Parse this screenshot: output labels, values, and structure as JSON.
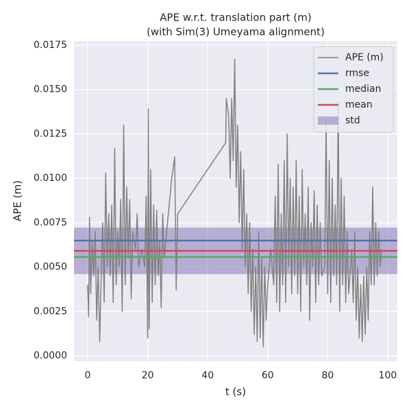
{
  "chart_data": {
    "type": "line",
    "title": "APE w.r.t. translation part (m)",
    "subtitle": "(with Sim(3) Umeyama alignment)",
    "x_label": "t (s)",
    "y_label": "APE (m)",
    "xlim": [
      -4.57,
      103.2
    ],
    "ylim": [
      -0.00031,
      0.01773
    ],
    "xticks": [
      0,
      20,
      40,
      60,
      80,
      100
    ],
    "yticks": [
      {
        "value": 0,
        "label": "0.0000"
      },
      {
        "value": 0.0025,
        "label": "0.0025"
      },
      {
        "value": 0.005,
        "label": "0.0050"
      },
      {
        "value": 0.0075,
        "label": "0.0075"
      },
      {
        "value": 0.01,
        "label": "0.0100"
      },
      {
        "value": 0.0125,
        "label": "0.0125"
      },
      {
        "value": 0.015,
        "label": "0.0150"
      },
      {
        "value": 0.0175,
        "label": "0.0175"
      }
    ],
    "grid": true,
    "legend": "upper right",
    "series": [
      {
        "name": "APE (m)",
        "color": "#808080",
        "x": [
          0,
          0.3,
          0.6,
          1,
          1.5,
          2,
          2.5,
          3,
          3.5,
          4,
          4.5,
          5,
          5.5,
          6,
          6.5,
          7,
          7.5,
          8,
          8.5,
          9,
          9.5,
          10,
          10.5,
          11,
          11.5,
          12,
          12.5,
          13,
          13.5,
          14,
          14.5,
          15,
          16,
          16.5,
          17,
          18,
          19,
          19.5,
          20,
          20.2,
          20.5,
          21,
          21.5,
          22,
          22.5,
          23,
          23.5,
          24,
          24.5,
          25,
          25.5,
          28,
          29,
          29.5,
          30,
          46,
          46.2,
          47,
          47.5,
          48,
          48.5,
          49,
          49.5,
          50,
          50.5,
          51,
          51.5,
          52,
          52.5,
          53,
          53.5,
          54,
          54.5,
          55,
          55.5,
          56,
          56.5,
          57,
          57.5,
          58,
          58.5,
          59,
          59.5,
          60,
          61,
          62,
          62.5,
          63,
          63.5,
          64,
          64.5,
          65,
          65.5,
          66,
          66.5,
          67,
          67.5,
          68,
          68.5,
          69,
          69.5,
          70,
          70.5,
          71,
          71.5,
          72,
          72.5,
          73,
          73.5,
          74,
          74.5,
          75,
          75.5,
          76,
          76.5,
          77,
          77.5,
          78,
          79,
          79.5,
          80,
          80.5,
          81,
          81.5,
          82,
          82.5,
          83,
          83.5,
          84,
          84.5,
          85,
          85.5,
          86,
          86.5,
          87,
          88,
          88.5,
          89,
          89.5,
          90,
          90.5,
          91,
          91.5,
          92,
          92.5,
          93,
          93.5,
          94,
          94.5,
          95,
          95.5,
          96,
          96.5,
          97,
          97.5,
          98
        ],
        "values": [
          0.004,
          0.0022,
          0.0078,
          0.0035,
          0.0065,
          0.0045,
          0.007,
          0.002,
          0.005,
          0.0008,
          0.0045,
          0.0075,
          0.003,
          0.0103,
          0.005,
          0.008,
          0.0045,
          0.0085,
          0.003,
          0.0117,
          0.004,
          0.007,
          0.005,
          0.0088,
          0.0025,
          0.013,
          0.004,
          0.0095,
          0.0055,
          0.0088,
          0.0032,
          0.007,
          0.006,
          0.008,
          0.005,
          0.006,
          0.005,
          0.009,
          0.001,
          0.0139,
          0.0015,
          0.0105,
          0.003,
          0.0085,
          0.004,
          0.0082,
          0.0045,
          0.0065,
          0.0027,
          0.008,
          0.0055,
          0.01,
          0.0112,
          0.0037,
          0.008,
          0.012,
          0.0145,
          0.0135,
          0.01,
          0.0145,
          0.011,
          0.0167,
          0.0095,
          0.013,
          0.0075,
          0.0115,
          0.006,
          0.0105,
          0.005,
          0.008,
          0.0035,
          0.0075,
          0.0025,
          0.006,
          0.0012,
          0.005,
          0.0008,
          0.007,
          0.001,
          0.0055,
          0.0005,
          0.005,
          0.002,
          0.004,
          0.006,
          0.004,
          0.009,
          0.003,
          0.0108,
          0.0025,
          0.008,
          0.004,
          0.011,
          0.003,
          0.0125,
          0.005,
          0.01,
          0.0035,
          0.0095,
          0.0045,
          0.011,
          0.0035,
          0.009,
          0.0025,
          0.0105,
          0.005,
          0.008,
          0.004,
          0.0095,
          0.002,
          0.0075,
          0.005,
          0.0093,
          0.003,
          0.0085,
          0.004,
          0.0075,
          0.0045,
          0.005,
          0.0135,
          0.0035,
          0.011,
          0.003,
          0.01,
          0.0045,
          0.0085,
          0.004,
          0.0143,
          0.0025,
          0.01,
          0.004,
          0.009,
          0.003,
          0.007,
          0.0035,
          0.006,
          0.003,
          0.007,
          0.002,
          0.005,
          0.001,
          0.004,
          0.0008,
          0.0045,
          0.0012,
          0.005,
          0.002,
          0.007,
          0.004,
          0.0095,
          0.004,
          0.0075,
          0.0045,
          0.007,
          0.005,
          0.006
        ]
      }
    ],
    "reference_lines": [
      {
        "name": "rmse",
        "color": "#4c72b0",
        "value": 0.00649
      },
      {
        "name": "median",
        "color": "#55a868",
        "value": 0.00556
      },
      {
        "name": "mean",
        "color": "#c44e52",
        "value": 0.00591
      }
    ],
    "std_band": {
      "name": "std",
      "color": "#8172b2",
      "value": 0.00131
    }
  }
}
